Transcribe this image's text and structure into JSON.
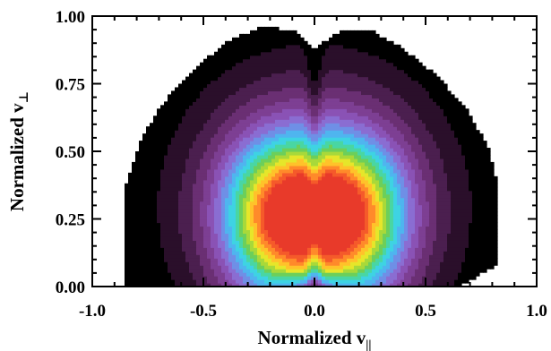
{
  "chart_data": {
    "type": "heatmap",
    "subtype": "filled-contour",
    "title": "",
    "xlabel": {
      "base": "Normalized v",
      "subscript": "||"
    },
    "ylabel": {
      "base": "Normalized v",
      "subscript": "⊥"
    },
    "xlim": [
      -1.0,
      1.0
    ],
    "ylim": [
      0.0,
      1.0
    ],
    "xticks": [
      -1.0,
      -0.5,
      0.0,
      0.5,
      1.0
    ],
    "xtick_labels": [
      "-1.0",
      "-0.5",
      "0.0",
      "0.5",
      "1.0"
    ],
    "yticks": [
      0.0,
      0.25,
      0.5,
      0.75,
      1.0
    ],
    "ytick_labels": [
      "0.00",
      "0.25",
      "0.50",
      "0.75",
      "1.00"
    ],
    "grid": false,
    "colormap": [
      "#000000",
      "#2a0f2a",
      "#4b1f4f",
      "#6a2f73",
      "#7d3f93",
      "#8a52b5",
      "#8a6dd2",
      "#6f8fe6",
      "#4fb5ef",
      "#3ed3e3",
      "#49d6a3",
      "#6ccf5a",
      "#a8d93a",
      "#e6e62a",
      "#ffc22a",
      "#ff8a2a",
      "#f55a2a",
      "#e83a2a"
    ],
    "peaks": [
      {
        "x": -0.16,
        "y": 0.26,
        "sx": 0.08,
        "sy": 0.08
      },
      {
        "x": 0.16,
        "y": 0.26,
        "sx": 0.08,
        "sy": 0.08
      }
    ],
    "envelope_outer": [
      [
        -0.85,
        0.0
      ],
      [
        -0.85,
        0.38
      ],
      [
        -0.78,
        0.55
      ],
      [
        -0.68,
        0.68
      ],
      [
        -0.55,
        0.8
      ],
      [
        -0.4,
        0.9
      ],
      [
        -0.25,
        0.96
      ],
      [
        -0.1,
        0.95
      ],
      [
        0.0,
        0.88
      ],
      [
        0.1,
        0.94
      ],
      [
        0.25,
        0.95
      ],
      [
        0.4,
        0.88
      ],
      [
        0.55,
        0.78
      ],
      [
        0.68,
        0.66
      ],
      [
        0.78,
        0.52
      ],
      [
        0.83,
        0.35
      ],
      [
        0.82,
        0.08
      ],
      [
        0.65,
        0.0
      ]
    ]
  }
}
